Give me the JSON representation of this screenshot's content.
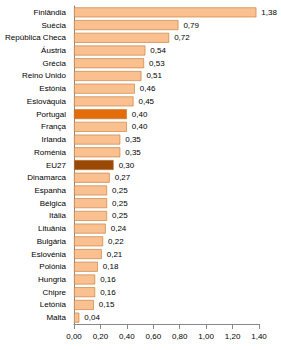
{
  "chart_data": {
    "type": "bar",
    "orientation": "horizontal",
    "categories": [
      "Finlândia",
      "Suécia",
      "República Checa",
      "Áustria",
      "Grécia",
      "Reino Unido",
      "Estónia",
      "Eslováquia",
      "Portugal",
      "França",
      "Irlanda",
      "Roménia",
      "EU27",
      "Dinamarca",
      "Espanha",
      "Bélgica",
      "Itália",
      "Lituânia",
      "Bulgária",
      "Eslovénia",
      "Polónia",
      "Hungria",
      "Chipre",
      "Letónia",
      "Malta"
    ],
    "values": [
      1.38,
      0.79,
      0.72,
      0.54,
      0.53,
      0.51,
      0.46,
      0.45,
      0.4,
      0.4,
      0.35,
      0.35,
      0.3,
      0.27,
      0.25,
      0.25,
      0.25,
      0.24,
      0.22,
      0.21,
      0.18,
      0.16,
      0.16,
      0.15,
      0.04
    ],
    "value_labels": [
      "1,38",
      "0,79",
      "0,72",
      "0,54",
      "0,53",
      "0,51",
      "0,46",
      "0,45",
      "0,40",
      "0,40",
      "0,35",
      "0,35",
      "0,30",
      "0,27",
      "0,25",
      "0,25",
      "0,25",
      "0,24",
      "0,22",
      "0,21",
      "0,18",
      "0,16",
      "0,16",
      "0,15",
      "0,04"
    ],
    "colors": [
      "#fac090",
      "#fac090",
      "#fac090",
      "#fac090",
      "#fac090",
      "#fac090",
      "#fac090",
      "#fac090",
      "#e46c0a",
      "#fac090",
      "#fac090",
      "#fac090",
      "#984807",
      "#fac090",
      "#fac090",
      "#fac090",
      "#fac090",
      "#fac090",
      "#fac090",
      "#fac090",
      "#fac090",
      "#fac090",
      "#fac090",
      "#fac090",
      "#fac090"
    ],
    "data_labels": true,
    "xlim": [
      0,
      1.4
    ],
    "xticks": [
      {
        "value": 0,
        "label": "0,00"
      },
      {
        "value": 0.2,
        "label": "0,20"
      },
      {
        "value": 0.4,
        "label": "0,40"
      },
      {
        "value": 0.6,
        "label": "0,60"
      },
      {
        "value": 0.8,
        "label": "0,80"
      },
      {
        "value": 1.0,
        "label": "1,00"
      },
      {
        "value": 1.2,
        "label": "1,20"
      },
      {
        "value": 1.4,
        "label": "1,40"
      }
    ],
    "grid": false
  }
}
